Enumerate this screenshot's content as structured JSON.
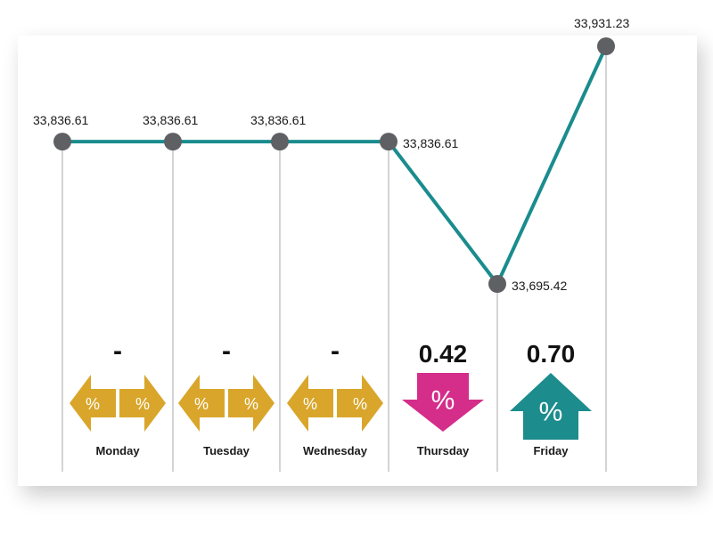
{
  "chart_data": {
    "type": "line",
    "title": "",
    "xlabel": "",
    "ylabel": "",
    "categories": [
      "Monday",
      "Tuesday",
      "Wednesday",
      "Thursday",
      "Friday"
    ],
    "series": [
      {
        "values": [
          33836.61,
          33836.61,
          33836.61,
          33695.42,
          33931.23
        ]
      }
    ],
    "data_labels": [
      "33,836.61",
      "33,836.61",
      "33,836.61",
      "33,836.61",
      "33,695.42",
      "33,931.23"
    ],
    "x_points": [
      "Monday",
      "Tuesday",
      "Wednesday",
      "Thursday",
      "Thursday",
      "Friday"
    ],
    "points_values": [
      33836.61,
      33836.61,
      33836.61,
      33836.61,
      33695.42,
      33931.23
    ],
    "changes": [
      {
        "day": "Monday",
        "value": "-",
        "direction": "unchanged",
        "symbol": "%"
      },
      {
        "day": "Tuesday",
        "value": "-",
        "direction": "unchanged",
        "symbol": "%"
      },
      {
        "day": "Wednesday",
        "value": "-",
        "direction": "unchanged",
        "symbol": "%"
      },
      {
        "day": "Thursday",
        "value": "0.42",
        "direction": "down",
        "symbol": "%"
      },
      {
        "day": "Friday",
        "value": "0.70",
        "direction": "up",
        "symbol": "%"
      }
    ],
    "ylim": [
      33650,
      33960
    ],
    "grid": false,
    "legend": "none",
    "colors": {
      "line": "#1a8c8e",
      "marker": "#5e6064",
      "unchanged": "#d9a62b",
      "down": "#d52d8a",
      "up": "#1c8c8d",
      "guide": "#b8b8b8"
    }
  }
}
